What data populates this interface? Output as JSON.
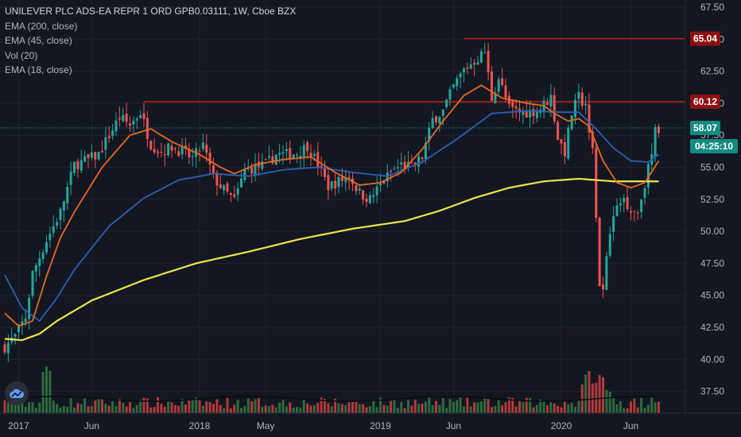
{
  "legend": {
    "title": "UNILEVER PLC ADS-EA REPR 1 ORD GPB0.03111, 1W, Cboe BZX",
    "lines": [
      "EMA (200, close)",
      "EMA (45, close)",
      "Vol (20)",
      "EMA (18, close)"
    ]
  },
  "colors": {
    "background": "#131722",
    "grid": "#1f2430",
    "up": "#26a69a",
    "down": "#ef5350",
    "ema200": "#f2e24a",
    "ema45": "#2f5fb3",
    "ema18": "#e66a22",
    "resistance": "#c31b1b",
    "vol_up": "#2e6b3c",
    "vol_down": "#b23a3a",
    "vol_ma": "#0a0c10"
  },
  "logo_icon": "cloud-icon",
  "chart_data": {
    "type": "candlestick",
    "title": "UNILEVER PLC ADS-EA REPR 1 ORD GPB0.03111, 1W, Cboe BZX",
    "ylim": [
      35.5,
      68.0
    ],
    "y_ticks": [
      "67.50",
      "65.00",
      "62.50",
      "60.00",
      "57.50",
      "55.00",
      "52.50",
      "50.00",
      "47.50",
      "45.00",
      "42.50",
      "40.00",
      "37.50"
    ],
    "x_ticks": [
      "2017",
      "Jun",
      "2018",
      "May",
      "2019",
      "Jun",
      "2020",
      "Jun"
    ],
    "x_tick_weeks": [
      4,
      25,
      56,
      75,
      108,
      129,
      160,
      180
    ],
    "price_labels": [
      {
        "label": "65.04",
        "value": 65.04,
        "kind": "resistance"
      },
      {
        "label": "60.12",
        "value": 60.12,
        "kind": "resistance"
      },
      {
        "label": "58.07",
        "value": 58.07,
        "kind": "last"
      },
      {
        "label": "04:25:10",
        "value": 56.8,
        "kind": "countdown"
      }
    ],
    "resistance_lines": [
      {
        "value": 65.04,
        "from_week": 132,
        "to_week": 195
      },
      {
        "value": 60.12,
        "from_week": 40,
        "to_week": 195
      }
    ],
    "close_anchors": [
      [
        0,
        41.0
      ],
      [
        3,
        41.8
      ],
      [
        6,
        43.3
      ],
      [
        8,
        46.7
      ],
      [
        12,
        49.3
      ],
      [
        16,
        51.5
      ],
      [
        20,
        55.2
      ],
      [
        24,
        55.6
      ],
      [
        27,
        56.0
      ],
      [
        30,
        57.5
      ],
      [
        33,
        58.9
      ],
      [
        36,
        58.3
      ],
      [
        39,
        59.3
      ],
      [
        42,
        56.8
      ],
      [
        45,
        56.2
      ],
      [
        48,
        56.6
      ],
      [
        51,
        56.2
      ],
      [
        54,
        55.7
      ],
      [
        57,
        56.7
      ],
      [
        60,
        54.2
      ],
      [
        63,
        53.2
      ],
      [
        66,
        52.4
      ],
      [
        69,
        54.7
      ],
      [
        72,
        55.0
      ],
      [
        75,
        55.2
      ],
      [
        78,
        56.0
      ],
      [
        81,
        56.0
      ],
      [
        84,
        56.1
      ],
      [
        87,
        56.7
      ],
      [
        90,
        55.2
      ],
      [
        93,
        53.5
      ],
      [
        96,
        53.9
      ],
      [
        99,
        54.3
      ],
      [
        102,
        53.0
      ],
      [
        105,
        52.5
      ],
      [
        108,
        53.6
      ],
      [
        111,
        54.6
      ],
      [
        114,
        55.2
      ],
      [
        117,
        55.0
      ],
      [
        120,
        55.8
      ],
      [
        123,
        58.7
      ],
      [
        126,
        59.4
      ],
      [
        129,
        61.3
      ],
      [
        132,
        62.6
      ],
      [
        135,
        63.3
      ],
      [
        138,
        64.0
      ],
      [
        140,
        60.4
      ],
      [
        142,
        62.0
      ],
      [
        145,
        59.6
      ],
      [
        148,
        59.3
      ],
      [
        151,
        59.3
      ],
      [
        154,
        59.6
      ],
      [
        157,
        60.5
      ],
      [
        159,
        57.3
      ],
      [
        161,
        56.2
      ],
      [
        163,
        59.2
      ],
      [
        165,
        60.5
      ],
      [
        167,
        59.7
      ],
      [
        169,
        56.6
      ],
      [
        170,
        51.5
      ],
      [
        171,
        46.0
      ],
      [
        172,
        45.2
      ],
      [
        174,
        50.2
      ],
      [
        176,
        51.8
      ],
      [
        178,
        52.6
      ],
      [
        180,
        51.7
      ],
      [
        182,
        51.5
      ],
      [
        184,
        53.8
      ],
      [
        186,
        56.0
      ],
      [
        187,
        57.8
      ],
      [
        188,
        58.0
      ]
    ],
    "ema200_anchors": [
      [
        0,
        41.6
      ],
      [
        5,
        41.5
      ],
      [
        10,
        42.0
      ],
      [
        15,
        43.0
      ],
      [
        25,
        44.6
      ],
      [
        40,
        46.2
      ],
      [
        55,
        47.5
      ],
      [
        70,
        48.4
      ],
      [
        85,
        49.4
      ],
      [
        100,
        50.2
      ],
      [
        115,
        50.8
      ],
      [
        125,
        51.6
      ],
      [
        135,
        52.6
      ],
      [
        145,
        53.4
      ],
      [
        155,
        53.9
      ],
      [
        165,
        54.1
      ],
      [
        175,
        53.9
      ],
      [
        188,
        53.9
      ]
    ],
    "ema45_anchors": [
      [
        0,
        46.6
      ],
      [
        5,
        44.0
      ],
      [
        10,
        43.0
      ],
      [
        15,
        44.8
      ],
      [
        20,
        47.0
      ],
      [
        30,
        50.4
      ],
      [
        40,
        52.6
      ],
      [
        50,
        54.0
      ],
      [
        60,
        54.5
      ],
      [
        70,
        54.3
      ],
      [
        80,
        54.8
      ],
      [
        90,
        55.0
      ],
      [
        100,
        54.6
      ],
      [
        110,
        54.3
      ],
      [
        120,
        55.4
      ],
      [
        130,
        57.2
      ],
      [
        140,
        59.2
      ],
      [
        150,
        59.4
      ],
      [
        160,
        59.3
      ],
      [
        165,
        59.3
      ],
      [
        170,
        58.0
      ],
      [
        175,
        56.5
      ],
      [
        180,
        55.5
      ],
      [
        185,
        55.4
      ],
      [
        188,
        56.0
      ]
    ],
    "ema18_anchors": [
      [
        0,
        43.6
      ],
      [
        4,
        42.6
      ],
      [
        8,
        43.0
      ],
      [
        12,
        46.5
      ],
      [
        16,
        49.5
      ],
      [
        20,
        51.5
      ],
      [
        28,
        55.0
      ],
      [
        36,
        57.5
      ],
      [
        42,
        58.0
      ],
      [
        48,
        57.0
      ],
      [
        56,
        56.0
      ],
      [
        62,
        55.0
      ],
      [
        66,
        54.5
      ],
      [
        72,
        55.2
      ],
      [
        80,
        55.6
      ],
      [
        88,
        55.8
      ],
      [
        95,
        54.6
      ],
      [
        102,
        53.6
      ],
      [
        108,
        53.8
      ],
      [
        114,
        54.6
      ],
      [
        120,
        56.4
      ],
      [
        126,
        58.6
      ],
      [
        132,
        60.6
      ],
      [
        137,
        61.4
      ],
      [
        143,
        60.4
      ],
      [
        150,
        60.0
      ],
      [
        155,
        59.8
      ],
      [
        158,
        59.2
      ],
      [
        162,
        58.6
      ],
      [
        165,
        58.8
      ],
      [
        168,
        58.2
      ],
      [
        172,
        55.5
      ],
      [
        176,
        53.8
      ],
      [
        180,
        53.4
      ],
      [
        184,
        53.8
      ],
      [
        188,
        55.5
      ]
    ],
    "volume_weeks": 188
  }
}
